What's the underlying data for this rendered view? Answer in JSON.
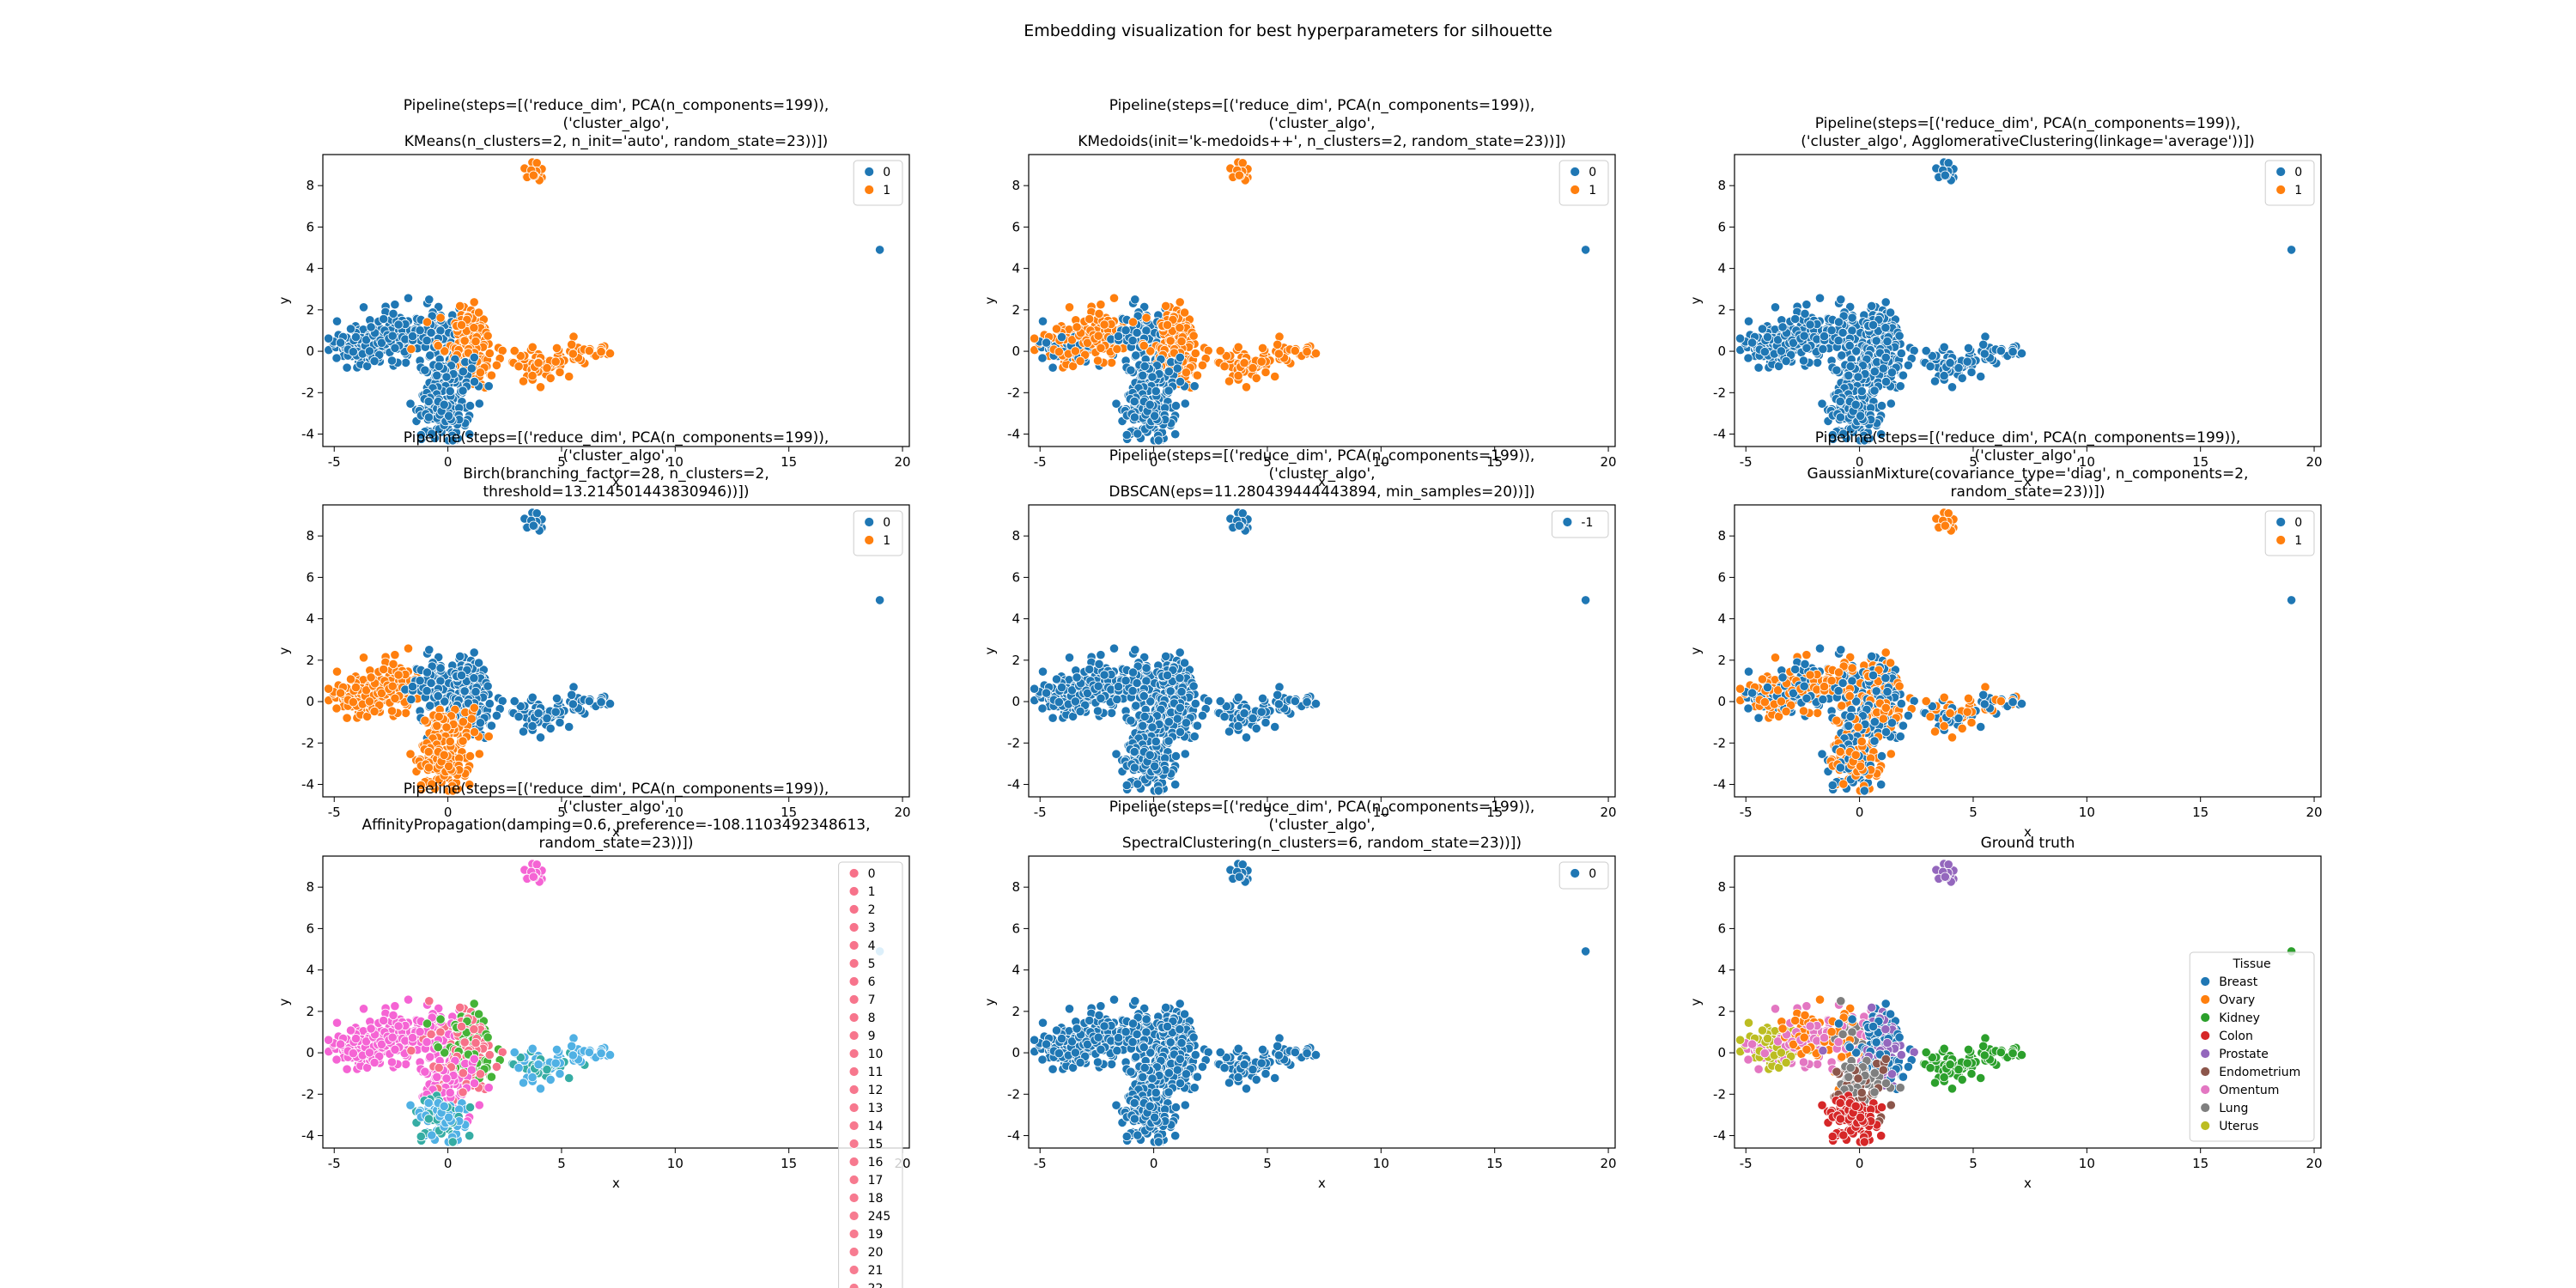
{
  "suptitle": "Embedding visualization for best hyperparameters for silhouette",
  "colors": {
    "tab_blue": "#1f77b4",
    "tab_orange": "#ff7f0e",
    "tab_green": "#2ca02c",
    "tab_red": "#d62728",
    "tab_purple": "#9467bd",
    "tab_brown": "#8c564b",
    "tab_pink": "#e377c2",
    "tab_gray": "#7f7f7f",
    "tab_olive": "#bcbd22",
    "husl_start": "#f77189",
    "husl_pink": "#f564d4",
    "husl_cyan": "#50b1e4",
    "husl_teal": "#36ada4",
    "husl_green": "#45b338"
  },
  "chart_data": [
    {
      "type": "scatter",
      "title": [
        "Pipeline(steps=[('reduce_dim', PCA(n_components=199)),",
        "('cluster_algo',",
        "KMeans(n_clusters=2, n_init='auto', random_state=23))])"
      ],
      "xlabel": "x",
      "ylabel": "y",
      "xlim": [
        -5.5,
        20.3
      ],
      "ylim": [
        -4.6,
        9.5
      ],
      "xticks": [
        -5,
        0,
        5,
        10,
        15,
        20
      ],
      "yticks": [
        -4,
        -2,
        0,
        2,
        4,
        6,
        8
      ],
      "coloring": "kmeans",
      "legend": {
        "placement": "top-right",
        "title": "",
        "entries": [
          {
            "label": "0",
            "color": "#1f77b4"
          },
          {
            "label": "1",
            "color": "#ff7f0e"
          }
        ]
      }
    },
    {
      "type": "scatter",
      "title": [
        "Pipeline(steps=[('reduce_dim', PCA(n_components=199)),",
        "('cluster_algo',",
        "KMedoids(init='k-medoids++', n_clusters=2, random_state=23))])"
      ],
      "xlabel": "x",
      "ylabel": "y",
      "xlim": [
        -5.5,
        20.3
      ],
      "ylim": [
        -4.6,
        9.5
      ],
      "xticks": [
        -5,
        0,
        5,
        10,
        15,
        20
      ],
      "yticks": [
        -4,
        -2,
        0,
        2,
        4,
        6,
        8
      ],
      "coloring": "kmedoids",
      "legend": {
        "placement": "top-right",
        "title": "",
        "entries": [
          {
            "label": "0",
            "color": "#1f77b4"
          },
          {
            "label": "1",
            "color": "#ff7f0e"
          }
        ]
      }
    },
    {
      "type": "scatter",
      "title": [
        "Pipeline(steps=[('reduce_dim', PCA(n_components=199)),",
        "('cluster_algo', AgglomerativeClustering(linkage='average'))])"
      ],
      "xlabel": "x",
      "ylabel": "y",
      "xlim": [
        -5.5,
        20.3
      ],
      "ylim": [
        -4.6,
        9.5
      ],
      "xticks": [
        -5,
        0,
        5,
        10,
        15,
        20
      ],
      "yticks": [
        -4,
        -2,
        0,
        2,
        4,
        6,
        8
      ],
      "coloring": "agglo",
      "legend": {
        "placement": "top-right",
        "title": "",
        "entries": [
          {
            "label": "0",
            "color": "#1f77b4"
          },
          {
            "label": "1",
            "color": "#ff7f0e"
          }
        ]
      }
    },
    {
      "type": "scatter",
      "title": [
        "Pipeline(steps=[('reduce_dim', PCA(n_components=199)),",
        "('cluster_algo',",
        "Birch(branching_factor=28, n_clusters=2,",
        "threshold=13.214501443830946))])"
      ],
      "xlabel": "x",
      "ylabel": "y",
      "xlim": [
        -5.5,
        20.3
      ],
      "ylim": [
        -4.6,
        9.5
      ],
      "xticks": [
        -5,
        0,
        5,
        10,
        15,
        20
      ],
      "yticks": [
        -4,
        -2,
        0,
        2,
        4,
        6,
        8
      ],
      "coloring": "birch",
      "legend": {
        "placement": "top-right",
        "title": "",
        "entries": [
          {
            "label": "0",
            "color": "#1f77b4"
          },
          {
            "label": "1",
            "color": "#ff7f0e"
          }
        ]
      }
    },
    {
      "type": "scatter",
      "title": [
        "Pipeline(steps=[('reduce_dim', PCA(n_components=199)),",
        "('cluster_algo',",
        "DBSCAN(eps=11.280439444443894, min_samples=20))])"
      ],
      "xlabel": "",
      "ylabel": "y",
      "xlim": [
        -5.5,
        20.3
      ],
      "ylim": [
        -4.6,
        9.5
      ],
      "xticks": [
        -5,
        0,
        5,
        10,
        15,
        20
      ],
      "yticks": [
        -4,
        -2,
        0,
        2,
        4,
        6,
        8
      ],
      "coloring": "single",
      "legend": {
        "placement": "top-right",
        "title": "",
        "entries": [
          {
            "label": "-1",
            "color": "#1f77b4"
          }
        ]
      }
    },
    {
      "type": "scatter",
      "title": [
        "Pipeline(steps=[('reduce_dim', PCA(n_components=199)),",
        "('cluster_algo',",
        "GaussianMixture(covariance_type='diag', n_components=2,",
        "random_state=23))])"
      ],
      "xlabel": "x",
      "ylabel": "y",
      "xlim": [
        -5.5,
        20.3
      ],
      "ylim": [
        -4.6,
        9.5
      ],
      "xticks": [
        -5,
        0,
        5,
        10,
        15,
        20
      ],
      "yticks": [
        -4,
        -2,
        0,
        2,
        4,
        6,
        8
      ],
      "coloring": "gmm",
      "legend": {
        "placement": "top-right",
        "title": "",
        "entries": [
          {
            "label": "0",
            "color": "#1f77b4"
          },
          {
            "label": "1",
            "color": "#ff7f0e"
          }
        ]
      }
    },
    {
      "type": "scatter",
      "title": [
        "Pipeline(steps=[('reduce_dim', PCA(n_components=199)),",
        "('cluster_algo',",
        "AffinityPropagation(damping=0.6, preference=-108.1103492348613,",
        "random_state=23))])"
      ],
      "xlabel": "x",
      "ylabel": "y",
      "xlim": [
        -5.5,
        20.3
      ],
      "ylim": [
        -4.6,
        9.5
      ],
      "xticks": [
        -5,
        0,
        5,
        10,
        15,
        20
      ],
      "yticks": [
        -4,
        -2,
        0,
        2,
        4,
        6,
        8
      ],
      "coloring": "affinity",
      "legend": {
        "placement": "top-right",
        "title": "",
        "entries": [
          {
            "label": "0",
            "color": "#f77189"
          },
          {
            "label": "1",
            "color": "#f7728a"
          },
          {
            "label": "2",
            "color": "#f7728a"
          },
          {
            "label": "3",
            "color": "#f7738b"
          },
          {
            "label": "4",
            "color": "#f7738b"
          },
          {
            "label": "5",
            "color": "#f7748b"
          },
          {
            "label": "6",
            "color": "#f7748c"
          },
          {
            "label": "7",
            "color": "#f7758c"
          },
          {
            "label": "8",
            "color": "#f7758c"
          },
          {
            "label": "9",
            "color": "#f7768d"
          },
          {
            "label": "10",
            "color": "#f7768d"
          },
          {
            "label": "11",
            "color": "#f7778d"
          },
          {
            "label": "12",
            "color": "#f7778e"
          },
          {
            "label": "13",
            "color": "#f7788e"
          },
          {
            "label": "14",
            "color": "#f7788e"
          },
          {
            "label": "15",
            "color": "#f7798f"
          },
          {
            "label": "16",
            "color": "#f7798f"
          },
          {
            "label": "17",
            "color": "#f77a8f"
          },
          {
            "label": "18",
            "color": "#f77a90"
          },
          {
            "label": "245",
            "color": "#f77b90"
          },
          {
            "label": "19",
            "color": "#f77b90"
          },
          {
            "label": "20",
            "color": "#f77c91"
          },
          {
            "label": "21",
            "color": "#f77c91"
          },
          {
            "label": "22",
            "color": "#f77d91"
          }
        ]
      }
    },
    {
      "type": "scatter",
      "title": [
        "Pipeline(steps=[('reduce_dim', PCA(n_components=199)),",
        "('cluster_algo',",
        "SpectralClustering(n_clusters=6, random_state=23))])"
      ],
      "xlabel": "x",
      "ylabel": "y",
      "xlim": [
        -5.5,
        20.3
      ],
      "ylim": [
        -4.6,
        9.5
      ],
      "xticks": [
        -5,
        0,
        5,
        10,
        15,
        20
      ],
      "yticks": [
        -4,
        -2,
        0,
        2,
        4,
        6,
        8
      ],
      "coloring": "single",
      "legend": {
        "placement": "top-right",
        "title": "",
        "entries": [
          {
            "label": "0",
            "color": "#1f77b4"
          }
        ]
      }
    },
    {
      "type": "scatter",
      "title": [
        "Ground truth"
      ],
      "xlabel": "x",
      "ylabel": "y",
      "xlim": [
        -5.5,
        20.3
      ],
      "ylim": [
        -4.6,
        9.5
      ],
      "xticks": [
        -5,
        0,
        5,
        10,
        15,
        20
      ],
      "yticks": [
        -4,
        -2,
        0,
        2,
        4,
        6,
        8
      ],
      "coloring": "tissue",
      "legend": {
        "placement": "lower-right",
        "title": "Tissue",
        "entries": [
          {
            "label": "Breast",
            "color": "#1f77b4"
          },
          {
            "label": "Ovary",
            "color": "#ff7f0e"
          },
          {
            "label": "Kidney",
            "color": "#2ca02c"
          },
          {
            "label": "Colon",
            "color": "#d62728"
          },
          {
            "label": "Prostate",
            "color": "#9467bd"
          },
          {
            "label": "Endometrium",
            "color": "#8c564b"
          },
          {
            "label": "Omentum",
            "color": "#e377c2"
          },
          {
            "label": "Lung",
            "color": "#7f7f7f"
          },
          {
            "label": "Uterus",
            "color": "#bcbd22"
          }
        ]
      }
    }
  ]
}
